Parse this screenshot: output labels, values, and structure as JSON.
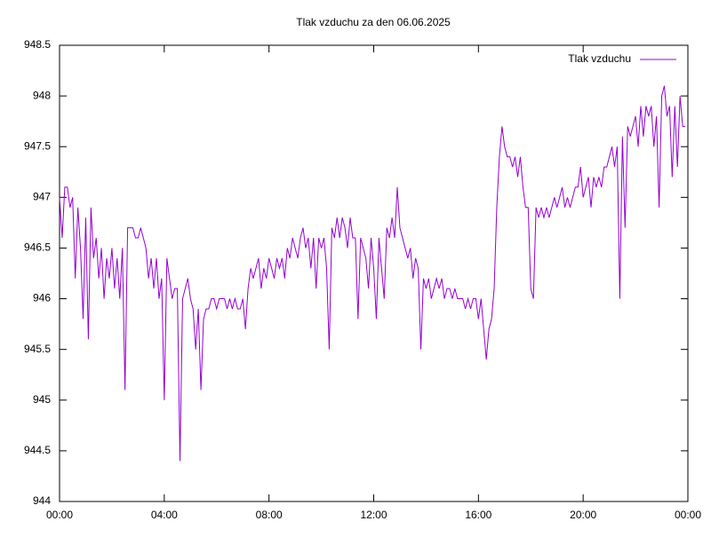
{
  "chart_data": {
    "type": "line",
    "title": "Tlak vzduchu za den 06.06.2025",
    "xlim": [
      0,
      24
    ],
    "xticks": [
      {
        "value": 0,
        "label": "00:00"
      },
      {
        "value": 4,
        "label": "04:00"
      },
      {
        "value": 8,
        "label": "08:00"
      },
      {
        "value": 12,
        "label": "12:00"
      },
      {
        "value": 16,
        "label": "16:00"
      },
      {
        "value": 20,
        "label": "20:00"
      },
      {
        "value": 24,
        "label": "00:00"
      }
    ],
    "ylim": [
      944,
      948.5
    ],
    "yticks": [
      944,
      944.5,
      945,
      945.5,
      946,
      946.5,
      947,
      947.5,
      948,
      948.5
    ],
    "legend": "top-right",
    "x": [
      0,
      0.1,
      0.2,
      0.3,
      0.4,
      0.5,
      0.6,
      0.7,
      0.8,
      0.9,
      1,
      1.1,
      1.2,
      1.3,
      1.4,
      1.5,
      1.6,
      1.7,
      1.8,
      1.9,
      2,
      2.1,
      2.2,
      2.3,
      2.4,
      2.5,
      2.6,
      2.7,
      2.8,
      2.9,
      3,
      3.1,
      3.2,
      3.3,
      3.4,
      3.5,
      3.6,
      3.7,
      3.8,
      3.9,
      4,
      4.1,
      4.2,
      4.3,
      4.4,
      4.5,
      4.6,
      4.7,
      4.8,
      4.9,
      5,
      5.1,
      5.2,
      5.3,
      5.4,
      5.5,
      5.6,
      5.7,
      5.8,
      5.9,
      6,
      6.1,
      6.2,
      6.3,
      6.4,
      6.5,
      6.6,
      6.7,
      6.8,
      6.9,
      7,
      7.1,
      7.2,
      7.3,
      7.4,
      7.5,
      7.6,
      7.7,
      7.8,
      7.9,
      8,
      8.1,
      8.2,
      8.3,
      8.4,
      8.5,
      8.6,
      8.7,
      8.8,
      8.9,
      9,
      9.1,
      9.2,
      9.3,
      9.4,
      9.5,
      9.6,
      9.7,
      9.8,
      9.9,
      10,
      10.1,
      10.2,
      10.3,
      10.4,
      10.5,
      10.6,
      10.7,
      10.8,
      10.9,
      11,
      11.1,
      11.2,
      11.3,
      11.4,
      11.5,
      11.6,
      11.7,
      11.8,
      11.9,
      12,
      12.1,
      12.2,
      12.3,
      12.4,
      12.5,
      12.6,
      12.7,
      12.8,
      12.9,
      13,
      13.1,
      13.2,
      13.3,
      13.4,
      13.5,
      13.6,
      13.7,
      13.8,
      13.9,
      14,
      14.1,
      14.2,
      14.3,
      14.4,
      14.5,
      14.6,
      14.7,
      14.8,
      14.9,
      15,
      15.1,
      15.2,
      15.3,
      15.4,
      15.5,
      15.6,
      15.7,
      15.8,
      15.9,
      16,
      16.1,
      16.2,
      16.3,
      16.4,
      16.5,
      16.6,
      16.7,
      16.8,
      16.9,
      17,
      17.1,
      17.2,
      17.3,
      17.4,
      17.5,
      17.6,
      17.7,
      17.8,
      17.9,
      18,
      18.1,
      18.2,
      18.3,
      18.4,
      18.5,
      18.6,
      18.7,
      18.8,
      18.9,
      19,
      19.1,
      19.2,
      19.3,
      19.4,
      19.5,
      19.6,
      19.7,
      19.8,
      19.9,
      20,
      20.1,
      20.2,
      20.3,
      20.4,
      20.5,
      20.6,
      20.7,
      20.8,
      20.9,
      21,
      21.1,
      21.2,
      21.3,
      21.4,
      21.5,
      21.6,
      21.7,
      21.8,
      21.9,
      22,
      22.1,
      22.2,
      22.3,
      22.4,
      22.5,
      22.6,
      22.7,
      22.8,
      22.9,
      23,
      23.1,
      23.2,
      23.3,
      23.4,
      23.5,
      23.6,
      23.7,
      23.8,
      23.9
    ],
    "series": [
      {
        "name": "Tlak vzduchu",
        "color": "#9400d3",
        "values": [
          947.0,
          946.6,
          947.1,
          947.1,
          946.9,
          947.0,
          946.2,
          946.9,
          946.5,
          945.8,
          946.8,
          945.6,
          946.9,
          946.4,
          946.6,
          946.2,
          946.5,
          946.0,
          946.4,
          946.2,
          946.5,
          946.1,
          946.4,
          946.0,
          946.5,
          945.1,
          946.7,
          946.7,
          946.7,
          946.6,
          946.6,
          946.7,
          946.6,
          946.5,
          946.2,
          946.4,
          946.1,
          946.4,
          946.0,
          946.2,
          945.0,
          946.4,
          946.2,
          946.0,
          946.1,
          946.1,
          944.4,
          946.0,
          946.1,
          946.2,
          946.0,
          945.9,
          945.5,
          945.9,
          945.1,
          945.8,
          945.9,
          945.9,
          946.0,
          946.0,
          945.9,
          946.0,
          946.0,
          946.0,
          945.9,
          946.0,
          945.9,
          946.0,
          945.9,
          945.9,
          946.0,
          945.7,
          946.1,
          946.3,
          946.2,
          946.3,
          946.4,
          946.1,
          946.3,
          946.2,
          946.4,
          946.3,
          946.2,
          946.4,
          946.3,
          946.4,
          946.2,
          946.5,
          946.4,
          946.6,
          946.5,
          946.4,
          946.6,
          946.7,
          946.5,
          946.6,
          946.3,
          946.6,
          946.1,
          946.6,
          946.5,
          946.6,
          946.3,
          945.5,
          946.7,
          946.6,
          946.8,
          946.6,
          946.8,
          946.7,
          946.5,
          946.8,
          946.6,
          946.6,
          945.8,
          946.6,
          946.5,
          946.4,
          946.1,
          946.6,
          946.3,
          945.8,
          946.6,
          946.3,
          946.0,
          946.7,
          946.6,
          946.8,
          946.6,
          947.1,
          946.7,
          946.6,
          946.5,
          946.4,
          946.5,
          946.2,
          946.4,
          946.3,
          945.5,
          946.2,
          946.1,
          946.2,
          946.0,
          946.1,
          946.2,
          946.1,
          946.2,
          946.0,
          946.1,
          946.1,
          946.0,
          946.1,
          946.0,
          946.0,
          946.0,
          945.9,
          946.0,
          945.9,
          946.0,
          946.0,
          945.8,
          946.0,
          945.7,
          945.4,
          945.7,
          945.8,
          946.1,
          946.9,
          947.4,
          947.7,
          947.5,
          947.4,
          947.4,
          947.3,
          947.4,
          947.2,
          947.4,
          947.1,
          946.9,
          946.9,
          946.1,
          946.0,
          946.9,
          946.8,
          946.9,
          946.8,
          946.9,
          946.8,
          946.9,
          947.0,
          946.9,
          947.0,
          947.1,
          946.9,
          947.0,
          946.9,
          947.0,
          947.1,
          947.1,
          947.3,
          947.0,
          947.1,
          947.2,
          946.9,
          947.2,
          947.1,
          947.2,
          947.1,
          947.3,
          947.3,
          947.4,
          947.5,
          947.3,
          947.5,
          946.0,
          947.6,
          946.7,
          947.7,
          947.6,
          947.7,
          947.8,
          947.5,
          947.9,
          947.6,
          947.9,
          947.8,
          947.9,
          947.5,
          947.8,
          946.9,
          948.0,
          948.1,
          947.8,
          947.9,
          947.2,
          947.9,
          947.3,
          948.0,
          947.7,
          947.7
        ]
      }
    ]
  }
}
